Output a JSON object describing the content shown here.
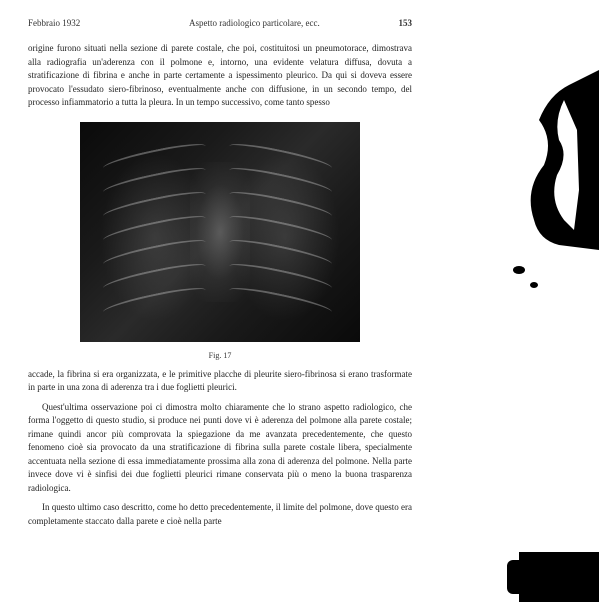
{
  "header": {
    "date": "Febbraio 1932",
    "title": "Aspetto radiologico particolare, ecc.",
    "page": "153"
  },
  "paragraphs": {
    "p1": "origine furono situati nella sezione di parete costale, che poi, costituitosi un pneumotorace, dimostrava alla radiografia un'aderenza con il polmone e, intorno, una evidente velatura diffusa, dovuta a stratificazione di fibrina e anche in parte certamente a ispessimento pleurico. Da qui si doveva essere provocato l'essudato siero-fibrinoso, eventualmente anche con diffusione, in un secondo tempo, del processo infiammatorio a tutta la pleura. In un tempo successivo, come tanto spesso",
    "p2": "accade, la fibrina si era organizzata, e le primitive placche di pleurite siero-fibrinosa si erano trasformate in parte in una zona di aderenza tra i due foglietti pleurici.",
    "p3": "Quest'ultima osservazione poi ci dimostra molto chiaramente che lo strano aspetto radiologico, che forma l'oggetto di questo studio, si produce nei punti dove vi è aderenza del polmone alla parete costale; rimane quindi ancor più comprovata la spiegazione da me avanzata precedentemente, che questo fenomeno cioè sia provocato da una stratificazione di fibrina sulla parete costale libera, specialmente accentuata nella sezione di essa immediatamente prossima alla zona di aderenza del polmone. Nella parte invece dove vi è sinfisi dei due foglietti pleurici rimane conservata più o meno la buona trasparenza radiologica.",
    "p4": "In questo ultimo caso descritto, come ho detto precedentemente, il limite del polmone, dove questo era completamente staccato dalla parete e cioè nella parte"
  },
  "figure": {
    "caption": "Fig. 17",
    "rib_count": 7,
    "rib_spacing": 24
  },
  "colors": {
    "text": "#222222",
    "background": "#ffffff",
    "xray_dark": "#0a0a0a",
    "rib_highlight": "rgba(200,200,200,0.4)"
  }
}
